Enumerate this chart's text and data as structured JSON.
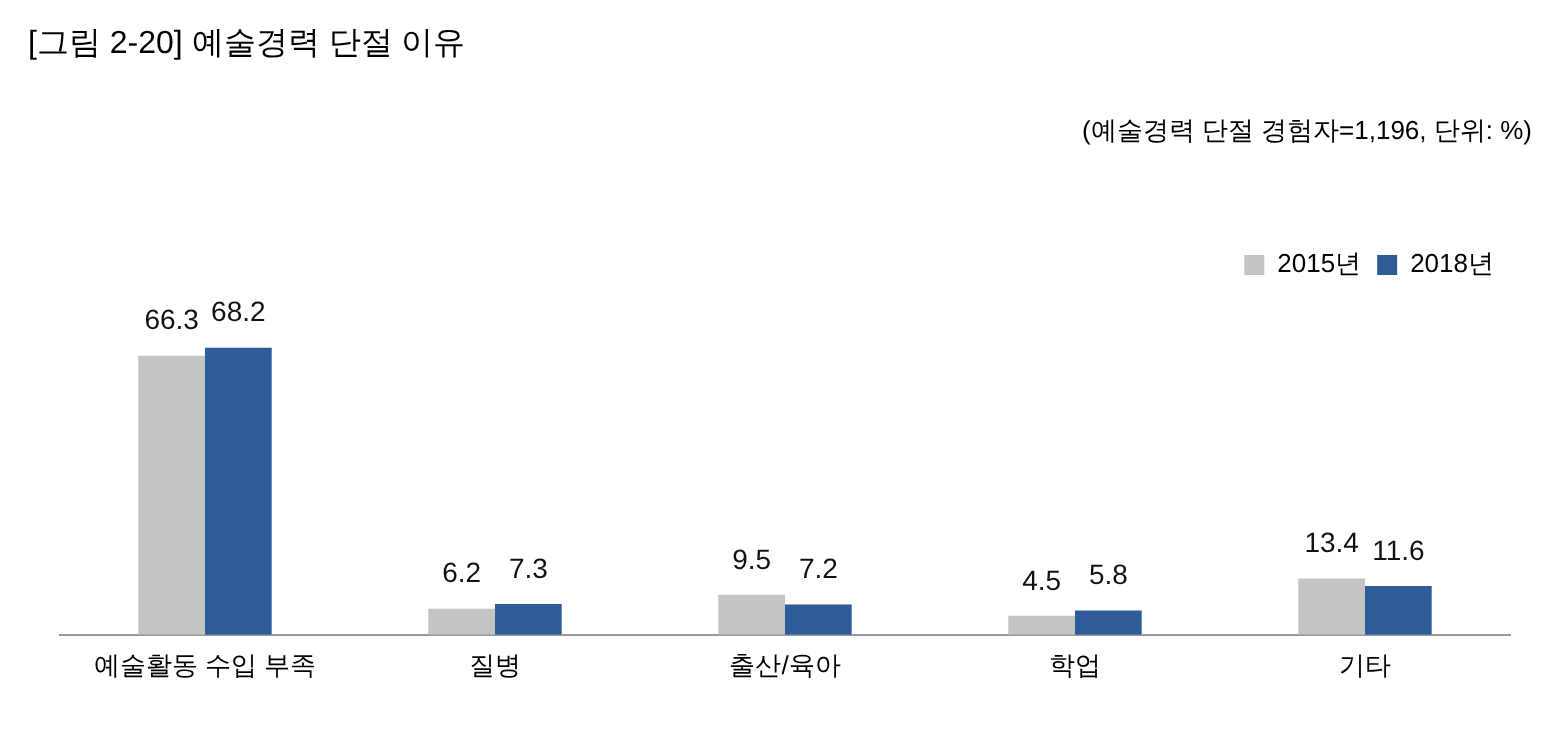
{
  "chart_data": {
    "type": "bar",
    "title": "[그림 2-20] 예술경력 단절 이유",
    "annotations": [
      "(예술경력 단절 경험자=1,196, 단위: %)"
    ],
    "categories": [
      "예술활동 수입 부족",
      "질병",
      "출산/육아",
      "학업",
      "기타"
    ],
    "series": [
      {
        "name": "2015년",
        "color": "#c4c4c4",
        "values": [
          66.3,
          6.2,
          9.5,
          4.5,
          13.4
        ]
      },
      {
        "name": "2018년",
        "color": "#2f5c99",
        "values": [
          68.2,
          7.3,
          7.2,
          5.8,
          11.6
        ]
      }
    ],
    "data_labels": true,
    "grid": false,
    "legend": "top right"
  }
}
